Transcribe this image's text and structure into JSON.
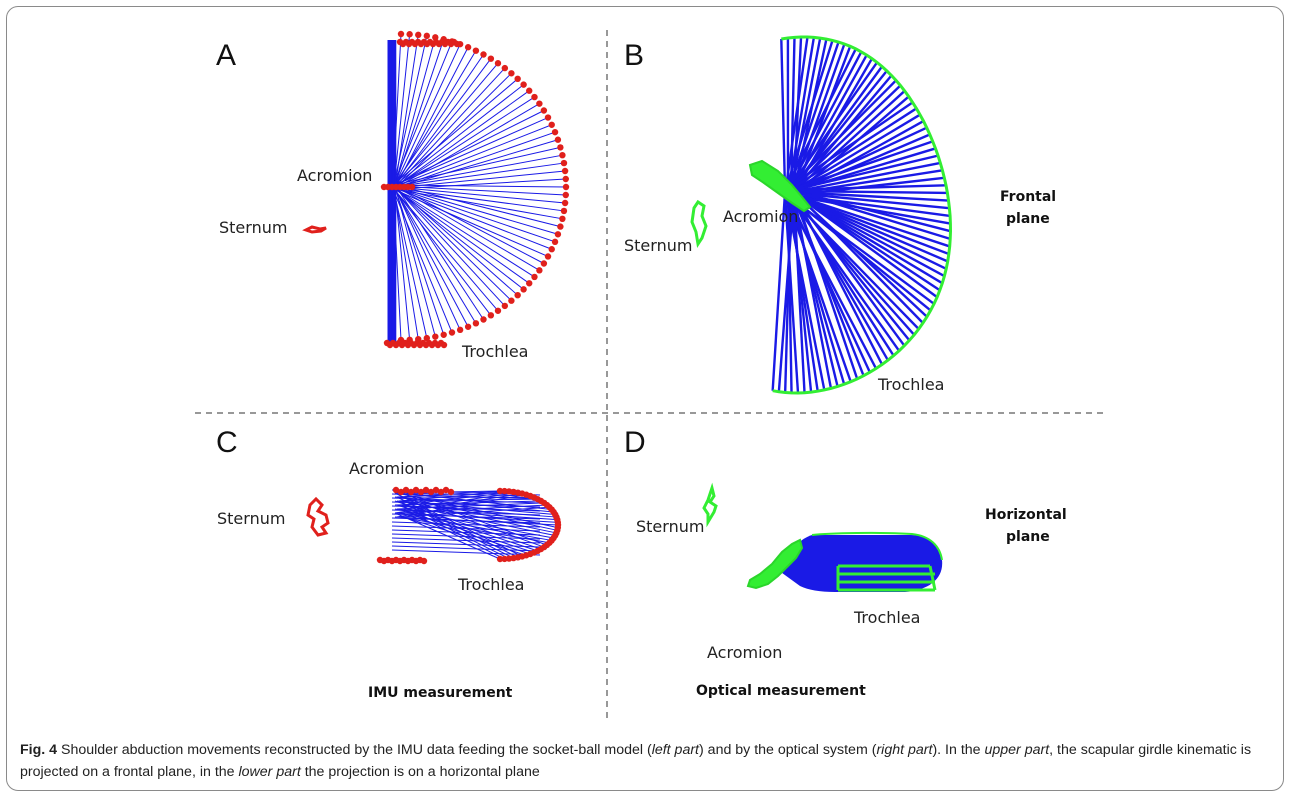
{
  "figure": {
    "panels": [
      {
        "letter": "A",
        "labels": {
          "acromion": "Acromion",
          "sternum": "Sternum",
          "trochlea": "Trochlea"
        }
      },
      {
        "letter": "B",
        "labels": {
          "acromion": "Acromion",
          "sternum": "Sternum",
          "trochlea": "Trochlea"
        }
      },
      {
        "letter": "C",
        "labels": {
          "acromion": "Acromion",
          "sternum": "Sternum",
          "trochlea": "Trochlea"
        }
      },
      {
        "letter": "D",
        "labels": {
          "acromion": "Acromion",
          "sternum": "Sternum",
          "trochlea": "Trochlea"
        }
      }
    ],
    "plane_labels": {
      "frontal_1": "Frontal",
      "frontal_2": "plane",
      "horizontal_1": "Horizontal",
      "horizontal_2": "plane"
    },
    "footer_labels": {
      "imu": "IMU measurement",
      "optical": "Optical  measurement"
    },
    "colors": {
      "imu_marker": "#e0201c",
      "optical_marker": "#33ee33",
      "segment": "#1a1ae6",
      "divider": "#777777"
    }
  },
  "caption": {
    "fig_label": "Fig. 4",
    "s1": " Shoulder abduction movements reconstructed by the IMU data feeding the socket-ball model (",
    "i1": "left part",
    "s2": ") and by the optical system (",
    "i2": "right part",
    "s3": "). In the ",
    "i3": "upper part",
    "s4": ", the scapular girdle kinematic is projected on a frontal plane, in the ",
    "i4": "lower part",
    "s5": " the projection is on a horizontal plane"
  }
}
